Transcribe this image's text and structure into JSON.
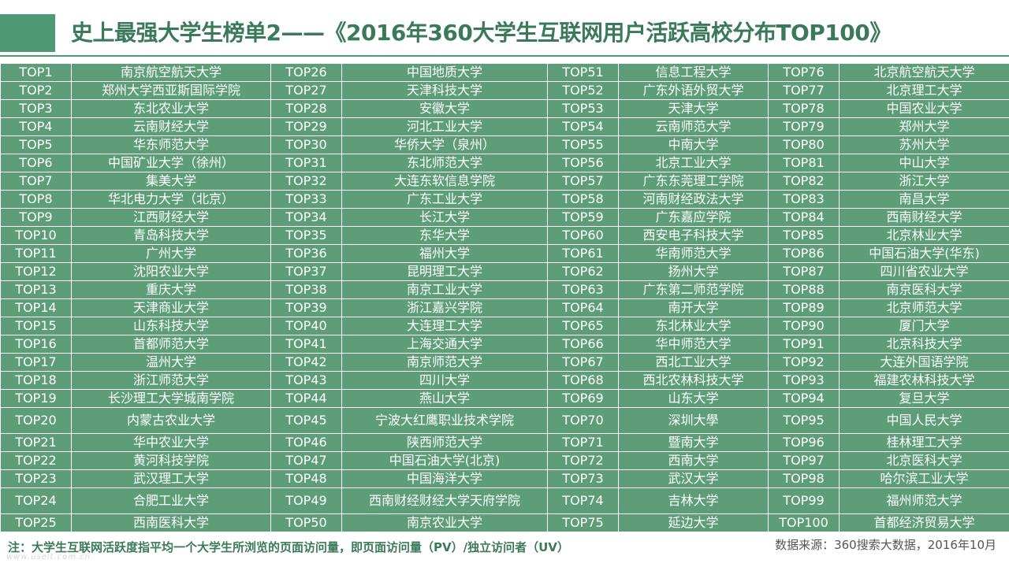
{
  "title": "史上最强大学生榜单2——《2016年360大学生互联网用户活跃高校分布TOP100》",
  "columns": [
    [
      [
        "TOP1",
        "南京航空航天大学"
      ],
      [
        "TOP2",
        "郑州大学西亚斯国际学院"
      ],
      [
        "TOP3",
        "东北农业大学"
      ],
      [
        "TOP4",
        "云南财经大学"
      ],
      [
        "TOP5",
        "华东师范大学"
      ],
      [
        "TOP6",
        "中国矿业大学（徐州）"
      ],
      [
        "TOP7",
        "集美大学"
      ],
      [
        "TOP8",
        "华北电力大学（北京）"
      ],
      [
        "TOP9",
        "江西财经大学"
      ],
      [
        "TOP10",
        "青岛科技大学"
      ],
      [
        "TOP11",
        "广州大学"
      ],
      [
        "TOP12",
        "沈阳农业大学"
      ],
      [
        "TOP13",
        "重庆大学"
      ],
      [
        "TOP14",
        "天津商业大学"
      ],
      [
        "TOP15",
        "山东科技大学"
      ],
      [
        "TOP16",
        "首都师范大学"
      ],
      [
        "TOP17",
        "温州大学"
      ],
      [
        "TOP18",
        "浙江师范大学"
      ],
      [
        "TOP19",
        "长沙理工大学城南学院"
      ],
      [
        "TOP20",
        "内蒙古农业大学"
      ],
      [
        "TOP21",
        "华中农业大学"
      ],
      [
        "TOP22",
        "黄河科技学院"
      ],
      [
        "TOP23",
        "武汉理工大学"
      ],
      [
        "TOP24",
        "合肥工业大学"
      ],
      [
        "TOP25",
        "西南医科大学"
      ]
    ],
    [
      [
        "TOP26",
        "中国地质大学"
      ],
      [
        "TOP27",
        "天津科技大学"
      ],
      [
        "TOP28",
        "安徽大学"
      ],
      [
        "TOP29",
        "河北工业大学"
      ],
      [
        "TOP30",
        "华侨大学（泉州）"
      ],
      [
        "TOP31",
        "东北师范大学"
      ],
      [
        "TOP32",
        "大连东软信息学院"
      ],
      [
        "TOP33",
        "广东工业大学"
      ],
      [
        "TOP34",
        "长江大学"
      ],
      [
        "TOP35",
        "东华大学"
      ],
      [
        "TOP36",
        "福州大学"
      ],
      [
        "TOP37",
        "昆明理工大学"
      ],
      [
        "TOP38",
        "南京工业大学"
      ],
      [
        "TOP39",
        "浙江嘉兴学院"
      ],
      [
        "TOP40",
        "大连理工大学"
      ],
      [
        "TOP41",
        "上海交通大学"
      ],
      [
        "TOP42",
        "南京师范大学"
      ],
      [
        "TOP43",
        "四川大学"
      ],
      [
        "TOP44",
        "燕山大学"
      ],
      [
        "TOP45",
        "宁波大红鹰职业技术学院"
      ],
      [
        "TOP46",
        "陕西师范大学"
      ],
      [
        "TOP47",
        "中国石油大学(北京)"
      ],
      [
        "TOP48",
        "中国海洋大学"
      ],
      [
        "TOP49",
        "西南财经财经大学天府学院"
      ],
      [
        "TOP50",
        "南京农业大学"
      ]
    ],
    [
      [
        "TOP51",
        "信息工程大学"
      ],
      [
        "TOP52",
        "广东外语外贸大学"
      ],
      [
        "TOP53",
        "天津大学"
      ],
      [
        "TOP54",
        "云南师范大学"
      ],
      [
        "TOP55",
        "中南大学"
      ],
      [
        "TOP56",
        "北京工业大学"
      ],
      [
        "TOP57",
        "广东东莞理工学院"
      ],
      [
        "TOP58",
        "河南财经政法大学"
      ],
      [
        "TOP59",
        "广东嘉应学院"
      ],
      [
        "TOP60",
        "西安电子科技大学"
      ],
      [
        "TOP61",
        "华南师范大学"
      ],
      [
        "TOP62",
        "扬州大学"
      ],
      [
        "TOP63",
        "广东第二师范学院"
      ],
      [
        "TOP64",
        "南开大学"
      ],
      [
        "TOP65",
        "东北林业大学"
      ],
      [
        "TOP66",
        "华中师范大学"
      ],
      [
        "TOP67",
        "西北工业大学"
      ],
      [
        "TOP68",
        "西北农林科技大学"
      ],
      [
        "TOP69",
        "山东大学"
      ],
      [
        "TOP70",
        "深圳大學"
      ],
      [
        "TOP71",
        "暨南大学"
      ],
      [
        "TOP72",
        "西南大学"
      ],
      [
        "TOP73",
        "武汉大学"
      ],
      [
        "TOP74",
        "吉林大学"
      ],
      [
        "TOP75",
        "延边大学"
      ]
    ],
    [
      [
        "TOP76",
        "北京航空航天大学"
      ],
      [
        "TOP77",
        "北京理工大学"
      ],
      [
        "TOP78",
        "中国农业大学"
      ],
      [
        "TOP79",
        "郑州大学"
      ],
      [
        "TOP80",
        "苏州大学"
      ],
      [
        "TOP81",
        "中山大学"
      ],
      [
        "TOP82",
        "浙江大学"
      ],
      [
        "TOP83",
        "南昌大学"
      ],
      [
        "TOP84",
        "西南财经大学"
      ],
      [
        "TOP85",
        "北京林业大学"
      ],
      [
        "TOP86",
        "中国石油大学(华东)"
      ],
      [
        "TOP87",
        "四川省农业大学"
      ],
      [
        "TOP88",
        "南京医科大学"
      ],
      [
        "TOP89",
        "北京师范大学"
      ],
      [
        "TOP90",
        "厦门大学"
      ],
      [
        "TOP91",
        "北京科技大学"
      ],
      [
        "TOP92",
        "大连外国语学院"
      ],
      [
        "TOP93",
        "福建农林科技大学"
      ],
      [
        "TOP94",
        "复旦大学"
      ],
      [
        "TOP95",
        "中国人民大学"
      ],
      [
        "TOP96",
        "桂林理工大学"
      ],
      [
        "TOP97",
        "北京医科大学"
      ],
      [
        "TOP98",
        "哈尔滨工业大学"
      ],
      [
        "TOP99",
        "福州师范大学"
      ],
      [
        "TOP100",
        "首都经济贸易大学"
      ]
    ]
  ],
  "footnote": "注：大学生互联网活跃度指平均一个大学生所浏览的页面访问量，即页面访问量（PV）/独立访问者（UV）",
  "source": "数据来源：360搜索大数据，2016年10月",
  "watermark": "www.useit.com.cn",
  "colors": {
    "table_bg": "#5d9e78",
    "title_green": "#3a7a5a",
    "accent": "#4f9a74"
  }
}
